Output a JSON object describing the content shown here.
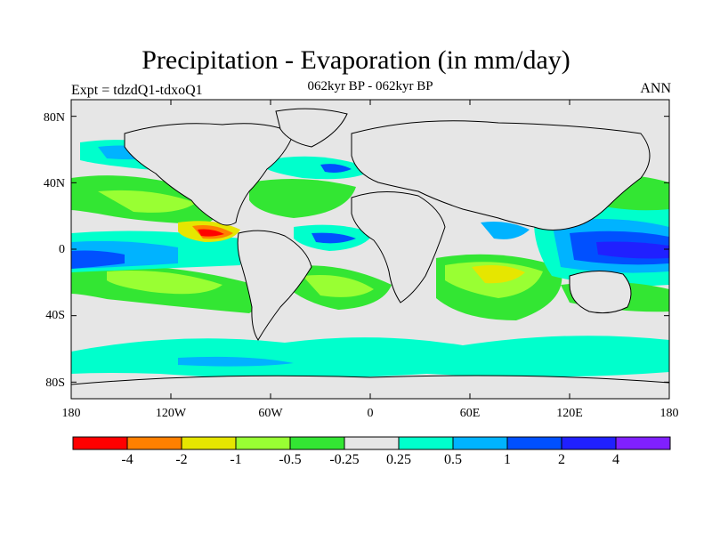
{
  "title": "Precipitation - Evaporation (in mm/day)",
  "subtitle": "062kyr BP - 062kyr BP",
  "left_label": "Expt = tdzdQ1-tdxoQ1",
  "right_label": "ANN",
  "y_ticks": [
    "80N",
    "40N",
    "0",
    "40S",
    "80S"
  ],
  "x_ticks": [
    "180",
    "120W",
    "60W",
    "0",
    "60E",
    "120E",
    "180"
  ],
  "colorbar": {
    "colors": [
      "#ff0000",
      "#ff8000",
      "#e6e600",
      "#99ff33",
      "#33e633",
      "#e6e6e6",
      "#00ffcc",
      "#00b3ff",
      "#0050ff",
      "#2020ff",
      "#8020ff"
    ],
    "labels": [
      "-4",
      "-2",
      "-1",
      "-0.5",
      "-0.25",
      "0.25",
      "0.5",
      "1",
      "2",
      "4"
    ]
  },
  "map": {
    "type": "filled-contour world map",
    "lon_range": [
      -180,
      180
    ],
    "lat_range": [
      -90,
      90
    ],
    "ocean_default_color": "#e6e6e6",
    "land_color": "#e6e6e6"
  }
}
